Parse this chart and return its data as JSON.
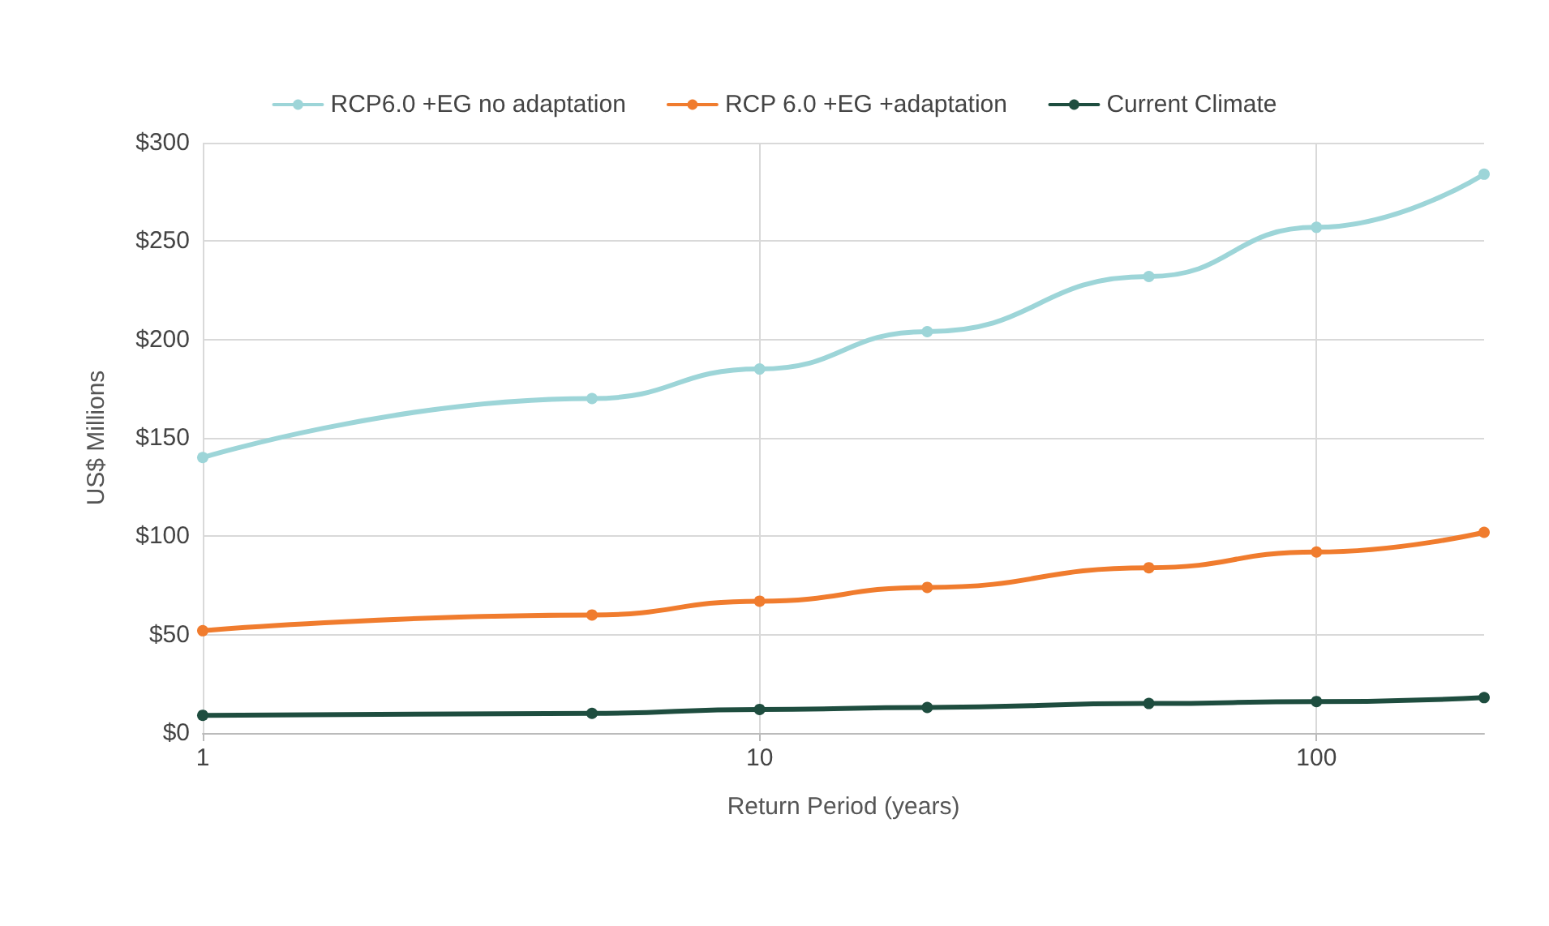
{
  "chart_data": {
    "type": "line",
    "xlabel": "Return Period (years)",
    "ylabel": "US$ Millions",
    "log": "x",
    "x": [
      1,
      5,
      10,
      20,
      50,
      100,
      200
    ],
    "xlim": [
      1,
      200
    ],
    "xticks": [
      1,
      10,
      100
    ],
    "ylim": [
      0,
      300
    ],
    "yticks": [
      {
        "value": 0,
        "label": "$0"
      },
      {
        "value": 50,
        "label": "$50"
      },
      {
        "value": 100,
        "label": "$100"
      },
      {
        "value": 150,
        "label": "$150"
      },
      {
        "value": 200,
        "label": "$200"
      },
      {
        "value": 250,
        "label": "$250"
      },
      {
        "value": 300,
        "label": "$300"
      }
    ],
    "grid": true,
    "legend": "top",
    "marker": "circle",
    "line_style": "solid",
    "series": [
      {
        "name": "RCP6.0 +EG no adaptation",
        "color": "#9dd5d8",
        "values": [
          140,
          170,
          185,
          204,
          232,
          257,
          284
        ]
      },
      {
        "name": "RCP 6.0 +EG +adaptation",
        "color": "#f07c2e",
        "values": [
          52,
          60,
          67,
          74,
          84,
          92,
          102
        ]
      },
      {
        "name": "Current Climate",
        "color": "#1e4d3f",
        "values": [
          9,
          10,
          12,
          13,
          15,
          16,
          18
        ]
      }
    ]
  }
}
